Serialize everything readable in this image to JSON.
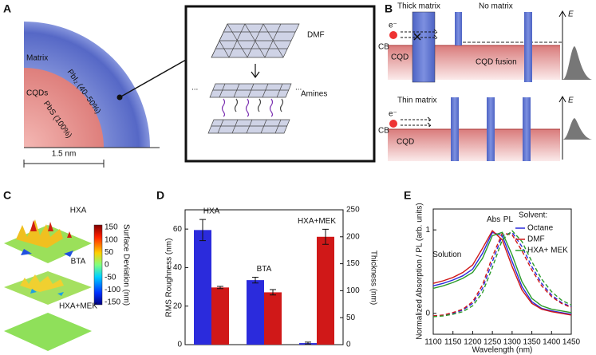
{
  "panels": {
    "A": {
      "label": "A",
      "matrix": "Matrix",
      "cqds": "CQDs",
      "shell": "PbI₂ (40–50%)",
      "core": "PbS (100%)",
      "scale": "1.5 nm",
      "dmf": "DMF",
      "amines": "Amines",
      "ellipsis": "..."
    },
    "B": {
      "label": "B",
      "thick": "Thick matrix",
      "none": "No matrix",
      "thin": "Thin matrix",
      "electron": "e⁻",
      "cb": "CB",
      "cqd": "CQD",
      "fusion": "CQD fusion",
      "energy": "E"
    },
    "C": {
      "label": "C",
      "samples": [
        "HXA",
        "BTA",
        "HXA+MEK"
      ],
      "colorbar_label": "Surface Deviation (nm)",
      "colorbar_ticks": [
        150,
        100,
        50,
        0,
        -50,
        -100,
        -150
      ]
    },
    "D": {
      "label": "D"
    },
    "E": {
      "label": "E"
    }
  },
  "chart_data": [
    {
      "type": "bar",
      "categories": [
        "HXA",
        "BTA",
        "HXA+MEK"
      ],
      "ylabel": "RMS Roughness (nm)",
      "y2label": "Thickness (nm)",
      "ylim": [
        0,
        70
      ],
      "yticks": [
        0,
        20,
        40,
        60
      ],
      "y2lim": [
        0,
        250
      ],
      "y2ticks": [
        0,
        50,
        100,
        150,
        200,
        250
      ],
      "series": [
        {
          "color": "#2b2bdc",
          "values": [
            59.5,
            33.5,
            0.8
          ],
          "errors": [
            5.5,
            1.5,
            0.5
          ]
        },
        {
          "color": "#d01818",
          "axis": "y2",
          "values": [
            106,
            97,
            200
          ],
          "errors": [
            2,
            5,
            14
          ]
        }
      ]
    },
    {
      "type": "line",
      "x": [
        1100,
        1125,
        1150,
        1175,
        1200,
        1225,
        1250,
        1275,
        1300,
        1325,
        1350,
        1375,
        1400,
        1425,
        1450
      ],
      "xlim": [
        1100,
        1450
      ],
      "xticks": [
        1100,
        1150,
        1200,
        1250,
        1300,
        1350,
        1400,
        1450
      ],
      "ylim": [
        -0.25,
        1.25
      ],
      "yticks": [
        0,
        1
      ],
      "xlabel": "Wavelength (nm)",
      "ylabel": "Normalized Absorption / PL (arb. units)",
      "legend_title": "Solvent:",
      "legend": "upper right",
      "annotations": [
        "Abs",
        "PL",
        "Solution"
      ],
      "series": [
        {
          "name": "Octane",
          "color": "#2b2bdc",
          "values": [
            0.33,
            0.36,
            0.4,
            0.45,
            0.53,
            0.72,
            0.97,
            0.93,
            0.62,
            0.32,
            0.14,
            0.06,
            0.03,
            0.01,
            -0.01
          ],
          "pl_values": [
            -0.03,
            -0.02,
            0.0,
            0.04,
            0.12,
            0.3,
            0.62,
            0.93,
            0.97,
            0.8,
            0.56,
            0.36,
            0.22,
            0.13,
            0.08
          ]
        },
        {
          "name": "DMF",
          "color": "#d01818",
          "values": [
            0.36,
            0.39,
            0.43,
            0.49,
            0.58,
            0.78,
            0.99,
            0.88,
            0.56,
            0.28,
            0.12,
            0.05,
            0.02,
            0.0,
            -0.02
          ],
          "pl_values": [
            -0.03,
            -0.02,
            0.01,
            0.05,
            0.14,
            0.34,
            0.68,
            0.96,
            0.94,
            0.75,
            0.52,
            0.33,
            0.2,
            0.12,
            0.07
          ]
        },
        {
          "name": "HXA+ MEK",
          "color": "#2a9a2a",
          "values": [
            0.3,
            0.33,
            0.37,
            0.42,
            0.49,
            0.66,
            0.93,
            0.97,
            0.7,
            0.38,
            0.18,
            0.09,
            0.05,
            0.03,
            0.01
          ],
          "pl_values": [
            -0.04,
            -0.03,
            -0.01,
            0.02,
            0.09,
            0.25,
            0.55,
            0.88,
            0.99,
            0.86,
            0.62,
            0.41,
            0.26,
            0.16,
            0.1
          ]
        }
      ]
    }
  ]
}
